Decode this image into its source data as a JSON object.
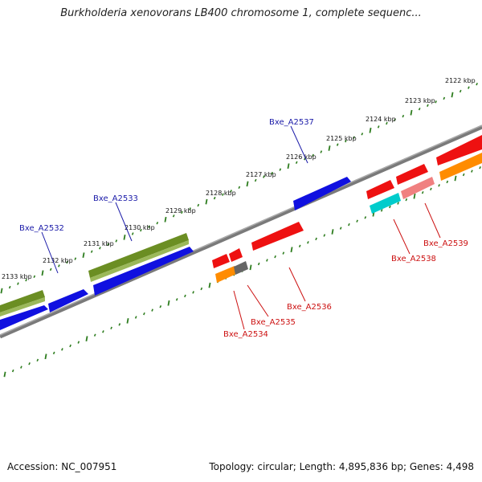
{
  "title": "Burkholderia xenovorans LB400 chromosome 1, complete sequenc...",
  "footer": {
    "accession": "Accession: NC_007951",
    "summary": "Topology: circular; Length: 4,895,836 bp; Genes: 4,498"
  },
  "colors": {
    "backbone": "#888888",
    "tick": "#2e7d1f",
    "forward_label": "#1a1aa8",
    "reverse_label": "#cc1111",
    "blue_gene": "#1010e0",
    "olive_gene": "#6b8e23",
    "red_gene": "#ee1111",
    "orange_gene": "#ff8c00",
    "cyan_gene": "#00cccc",
    "pink_gene": "#f08080",
    "gray_gene": "#666666"
  },
  "kbp_labels": [
    "2122 kbp",
    "2123 kbp",
    "2124 kbp",
    "2125 kbp",
    "2126 kbp",
    "2127 kbp",
    "2128 kbp",
    "2129 kbp",
    "2130 kbp",
    "2131 kbp",
    "2132 kbp",
    "2133 kbp"
  ],
  "gene_labels": {
    "forward": [
      "Bxe_A2532",
      "Bxe_A2533",
      "Bxe_A2537"
    ],
    "reverse": [
      "Bxe_A2534",
      "Bxe_A2535",
      "Bxe_A2536",
      "Bxe_A2538",
      "Bxe_A2539"
    ]
  }
}
